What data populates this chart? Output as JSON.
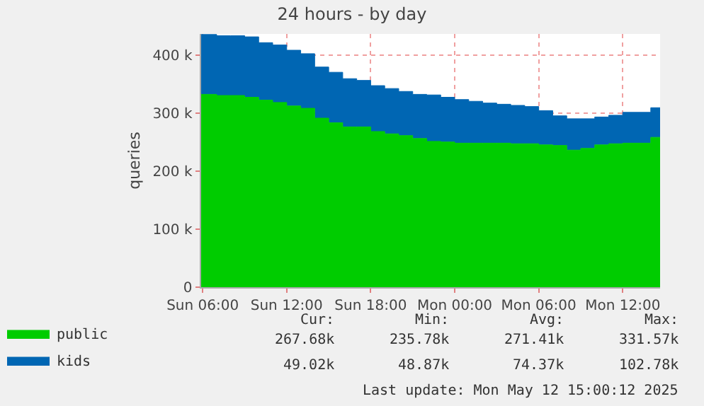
{
  "chart_data": {
    "type": "area",
    "title": "24 hours - by day",
    "ylabel": "queries",
    "stacked": true,
    "x": [
      "2025-05-11T05:52",
      "2025-05-11T07:00",
      "2025-05-11T07:00",
      "2025-05-11T08:00",
      "2025-05-11T08:00",
      "2025-05-11T09:00",
      "2025-05-11T09:00",
      "2025-05-11T10:00",
      "2025-05-11T10:00",
      "2025-05-11T11:00",
      "2025-05-11T11:00",
      "2025-05-11T12:00",
      "2025-05-11T12:00",
      "2025-05-11T13:00",
      "2025-05-11T13:00",
      "2025-05-11T14:00",
      "2025-05-11T14:00",
      "2025-05-11T15:00",
      "2025-05-11T15:00",
      "2025-05-11T16:00",
      "2025-05-11T16:00",
      "2025-05-11T17:00",
      "2025-05-11T17:00",
      "2025-05-11T18:00",
      "2025-05-11T18:00",
      "2025-05-11T19:00",
      "2025-05-11T19:00",
      "2025-05-11T20:00",
      "2025-05-11T20:00",
      "2025-05-11T21:00",
      "2025-05-11T21:00",
      "2025-05-11T22:00",
      "2025-05-11T22:00",
      "2025-05-11T23:00",
      "2025-05-11T23:00",
      "2025-05-12T00:00",
      "2025-05-12T00:00",
      "2025-05-12T01:00",
      "2025-05-12T01:00",
      "2025-05-12T02:00",
      "2025-05-12T02:00",
      "2025-05-12T03:00",
      "2025-05-12T03:00",
      "2025-05-12T04:00",
      "2025-05-12T04:00",
      "2025-05-12T05:00",
      "2025-05-12T05:00",
      "2025-05-12T06:00",
      "2025-05-12T06:00",
      "2025-05-12T07:00",
      "2025-05-12T07:00",
      "2025-05-12T08:00",
      "2025-05-12T08:00",
      "2025-05-12T09:00",
      "2025-05-12T09:00",
      "2025-05-12T10:00",
      "2025-05-12T10:00",
      "2025-05-12T11:00",
      "2025-05-12T11:00",
      "2025-05-12T12:00",
      "2025-05-12T12:00",
      "2025-05-12T13:00",
      "2025-05-12T13:00",
      "2025-05-12T14:00",
      "2025-05-12T14:00",
      "2025-05-12T14:40"
    ],
    "series": [
      {
        "name": "public",
        "color": "#00cc00",
        "values": [
          332,
          332,
          330,
          330,
          330,
          330,
          327,
          327,
          322,
          322,
          318,
          318,
          312,
          312,
          308,
          308,
          291,
          291,
          283,
          283,
          276,
          276,
          276,
          276,
          268,
          268,
          264,
          264,
          261,
          261,
          256,
          256,
          251,
          251,
          250,
          250,
          248,
          248,
          248,
          248,
          248,
          248,
          248,
          248,
          247,
          247,
          247,
          247,
          245,
          245,
          244,
          244,
          236,
          236,
          239,
          239,
          245,
          245,
          247,
          247,
          248,
          248,
          248,
          248,
          258,
          258
        ]
      },
      {
        "name": "kids",
        "color": "#0066b3",
        "values": [
          103,
          103,
          103,
          103,
          103,
          103,
          104,
          104,
          99,
          99,
          99,
          99,
          96,
          96,
          94,
          94,
          88,
          88,
          87,
          87,
          83,
          83,
          80,
          80,
          79,
          79,
          78,
          78,
          76,
          76,
          76,
          76,
          80,
          80,
          77,
          77,
          75,
          75,
          72,
          72,
          69,
          69,
          67,
          67,
          66,
          66,
          64,
          64,
          59,
          59,
          51,
          51,
          54,
          54,
          51,
          51,
          48,
          48,
          49,
          49,
          53,
          53,
          53,
          53,
          51,
          51
        ]
      }
    ],
    "xlim": [
      "2025-05-11T05:52",
      "2025-05-12T14:40"
    ],
    "xticks": [
      {
        "value": "2025-05-11T06:00",
        "label": "Sun 06:00"
      },
      {
        "value": "2025-05-11T12:00",
        "label": "Sun 12:00"
      },
      {
        "value": "2025-05-11T18:00",
        "label": "Sun 18:00"
      },
      {
        "value": "2025-05-12T00:00",
        "label": "Mon 00:00"
      },
      {
        "value": "2025-05-12T06:00",
        "label": "Mon 06:00"
      },
      {
        "value": "2025-05-12T12:00",
        "label": "Mon 12:00"
      }
    ],
    "ylim": [
      0,
      436
    ],
    "yticks": [
      0,
      {
        "value": 100,
        "label": "100 k"
      },
      {
        "value": 200,
        "label": "200 k"
      },
      {
        "value": 300,
        "label": "300 k"
      },
      {
        "value": 400,
        "label": "400 k"
      }
    ],
    "grid": true,
    "legend": "bottom left",
    "annotations": [
      "Cur:",
      "Min:",
      "Avg:",
      "Max:",
      "267.68k",
      "235.78k",
      "271.41k",
      "331.57k",
      "49.02k",
      "48.87k",
      "74.37k",
      "102.78k",
      "Last update: Mon May 12 15:00:12 2025"
    ]
  }
}
